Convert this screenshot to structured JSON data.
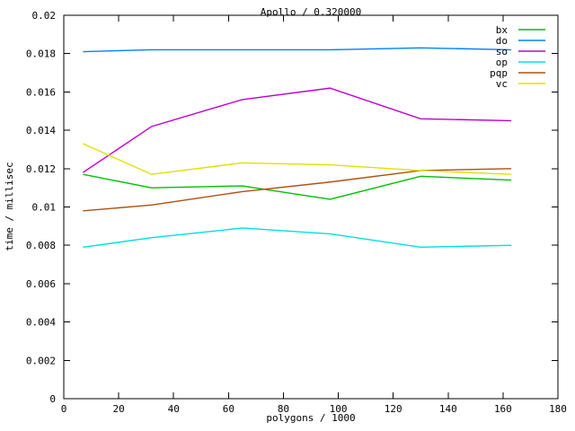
{
  "chart_data": {
    "type": "line",
    "title": "Apollo / 0.320000",
    "xlabel": "polygons / 1000",
    "ylabel": "time / millisec",
    "xlim": [
      0,
      180
    ],
    "ylim": [
      0,
      0.02
    ],
    "grid": false,
    "legend_position": "top-right",
    "xticks": [
      {
        "value": 0,
        "label": "0"
      },
      {
        "value": 20,
        "label": "20"
      },
      {
        "value": 40,
        "label": "40"
      },
      {
        "value": 60,
        "label": "60"
      },
      {
        "value": 80,
        "label": "80"
      },
      {
        "value": 100,
        "label": "100"
      },
      {
        "value": 120,
        "label": "120"
      },
      {
        "value": 140,
        "label": "140"
      },
      {
        "value": 160,
        "label": "160"
      },
      {
        "value": 180,
        "label": "180"
      }
    ],
    "yticks": [
      {
        "value": 0,
        "label": "0"
      },
      {
        "value": 0.002,
        "label": "0.002"
      },
      {
        "value": 0.004,
        "label": "0.004"
      },
      {
        "value": 0.006,
        "label": "0.006"
      },
      {
        "value": 0.008,
        "label": "0.008"
      },
      {
        "value": 0.01,
        "label": "0.01"
      },
      {
        "value": 0.012,
        "label": "0.012"
      },
      {
        "value": 0.014,
        "label": "0.014"
      },
      {
        "value": 0.016,
        "label": "0.016"
      },
      {
        "value": 0.018,
        "label": "0.018"
      },
      {
        "value": 0.02,
        "label": "0.02"
      }
    ],
    "x": [
      7,
      32,
      65,
      97,
      130,
      163
    ],
    "series": [
      {
        "name": "bx",
        "color": "#00c000",
        "values": [
          0.0117,
          0.011,
          0.0111,
          0.0104,
          0.0116,
          0.0114
        ]
      },
      {
        "name": "do",
        "color": "#0080ff",
        "values": [
          0.0181,
          0.0182,
          0.0182,
          0.0182,
          0.0183,
          0.0182
        ]
      },
      {
        "name": "so",
        "color": "#c000d0",
        "values": [
          0.0118,
          0.0142,
          0.0156,
          0.0162,
          0.0146,
          0.0145
        ]
      },
      {
        "name": "op",
        "color": "#00e0e0",
        "values": [
          0.0079,
          0.0084,
          0.0089,
          0.0086,
          0.0079,
          0.008
        ]
      },
      {
        "name": "pqp",
        "color": "#b05010",
        "values": [
          0.0098,
          0.0101,
          0.0108,
          0.0113,
          0.0119,
          0.012
        ]
      },
      {
        "name": "vc",
        "color": "#e0e000",
        "values": [
          0.0133,
          0.0117,
          0.0123,
          0.0122,
          0.0119,
          0.0117
        ]
      }
    ],
    "frame_color": "#000000",
    "background_color": "#ffffff"
  }
}
